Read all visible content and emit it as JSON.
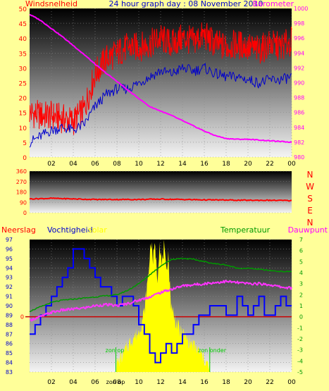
{
  "header": {
    "left_label": "Windsnelheid",
    "title": "24 hour graph day : 08 November 2010",
    "right_label": "Barometer"
  },
  "lower_header": {
    "rain_label": "Neerslag",
    "humidity_label": "Vochtigheid",
    "solar_label": "solar",
    "temperature_label": "Temperatuur",
    "dewpoint_label": "Dauwpunt"
  },
  "compass_letters": [
    "N",
    "W",
    "S",
    "E",
    "N"
  ],
  "sun_labels": {
    "sunrise_left": "zon op",
    "sunset_right": "zon onder",
    "axis_sunrise": "zon op"
  },
  "colors": {
    "wind_gust": "#ff0000",
    "wind_avg": "#0000cc",
    "barometer": "#ff00ff",
    "direction": "#ff0000",
    "humidity": "#0000ff",
    "temperature": "#009900",
    "dewpoint": "#ff33ff",
    "solar": "#ffff00",
    "rain_zero_line": "#ff0000",
    "zero_line_temp": "#cc0000"
  },
  "chart_data": [
    {
      "type": "line",
      "panel": "wind_and_pressure",
      "x_ticks": [
        "02",
        "04",
        "06",
        "08",
        "10",
        "12",
        "14",
        "16",
        "18",
        "20",
        "22",
        "00"
      ],
      "y_left_ticks": [
        "0",
        "5",
        "10",
        "15",
        "20",
        "25",
        "30",
        "35",
        "40",
        "45",
        "50"
      ],
      "ylim_left": [
        0,
        50
      ],
      "y_right_ticks": [
        "980",
        "982",
        "984",
        "986",
        "988",
        "990",
        "992",
        "994",
        "996",
        "998",
        "1000"
      ],
      "ylim_right": [
        980,
        1000
      ],
      "hours": [
        0,
        1,
        2,
        3,
        4,
        5,
        6,
        7,
        8,
        9,
        10,
        11,
        12,
        13,
        14,
        15,
        16,
        17,
        18,
        19,
        20,
        21,
        22,
        23,
        24
      ],
      "series": [
        {
          "name": "Windsnelheid",
          "axis": "left",
          "values": [
            15,
            14,
            14,
            13,
            12,
            16,
            28,
            33,
            35,
            37,
            37,
            38,
            40,
            38,
            40,
            39,
            41,
            38,
            37,
            38,
            37,
            36,
            38,
            37,
            39
          ]
        },
        {
          "name": "",
          "axis": "left",
          "values": [
            5,
            7,
            9,
            10,
            9,
            11,
            17,
            21,
            23,
            23,
            25,
            27,
            29,
            28,
            30,
            29,
            30,
            28,
            27,
            27,
            26,
            25,
            26,
            26,
            27
          ]
        },
        {
          "name": "Barometer",
          "axis": "right",
          "values": [
            999.2,
            998.4,
            997.3,
            996.2,
            995.0,
            993.8,
            992.5,
            991.3,
            990.2,
            989.0,
            987.9,
            986.8,
            986.2,
            985.6,
            984.9,
            984.2,
            983.5,
            982.9,
            982.5,
            982.4,
            982.4,
            982.3,
            982.2,
            982.1,
            982.0
          ]
        }
      ]
    },
    {
      "type": "line",
      "panel": "wind_direction",
      "y_ticks": [
        "0",
        "90",
        "180",
        "270",
        "360"
      ],
      "ylim": [
        0,
        360
      ],
      "hours": [
        0,
        2,
        4,
        6,
        8,
        10,
        12,
        14,
        16,
        18,
        20,
        22,
        24
      ],
      "series": [
        {
          "name": "",
          "values": [
            120,
            125,
            120,
            115,
            115,
            115,
            118,
            115,
            112,
            110,
            108,
            108,
            105
          ]
        }
      ]
    },
    {
      "type": "line",
      "panel": "humidity_temperature_solar",
      "x_ticks": [
        "02",
        "04",
        "06",
        "08",
        "10",
        "12",
        "14",
        "16",
        "18",
        "20",
        "22",
        "00"
      ],
      "y_left_ticks": [
        "83",
        "84",
        "85",
        "86",
        "87",
        "88",
        "89",
        "90",
        "91",
        "92",
        "93",
        "94",
        "95",
        "96",
        "97"
      ],
      "ylim_left": [
        83,
        97
      ],
      "y_right_ticks": [
        "-5",
        "-4",
        "-3",
        "-2",
        "-1",
        "0",
        "1",
        "2",
        "3",
        "4",
        "5",
        "6",
        "7"
      ],
      "ylim_right": [
        -5,
        7
      ],
      "rain_axis_value": "0",
      "series": [
        {
          "name": "Vochtigheid",
          "axis": "left",
          "hours": [
            0,
            0.5,
            1,
            1.5,
            2,
            2.5,
            3,
            3.5,
            4,
            4.5,
            5,
            5.5,
            6,
            6.5,
            7,
            7.5,
            8,
            8.5,
            9,
            9.5,
            10,
            10.5,
            11,
            11.5,
            12,
            12.5,
            13,
            13.5,
            14,
            14.5,
            15,
            15.5,
            16,
            16.5,
            17,
            17.5,
            18,
            18.5,
            19,
            19.5,
            20,
            20.5,
            21,
            21.5,
            22,
            22.5,
            23,
            23.5,
            24
          ],
          "values": [
            87,
            88,
            89,
            90,
            91,
            92,
            93,
            94,
            96,
            96,
            95,
            94,
            93,
            92,
            92,
            91,
            90,
            91,
            91,
            90,
            88,
            87,
            85,
            84,
            85,
            86,
            85,
            86,
            87,
            87,
            88,
            89,
            89,
            90,
            90,
            90,
            89,
            89,
            91,
            90,
            89,
            90,
            91,
            89,
            89,
            90,
            91,
            90,
            90
          ]
        },
        {
          "name": "Temperatuur",
          "axis": "right",
          "hours": [
            0,
            1,
            2,
            3,
            4,
            5,
            6,
            7,
            8,
            9,
            10,
            11,
            12,
            13,
            14,
            15,
            16,
            17,
            18,
            19,
            20,
            21,
            22,
            23,
            24
          ],
          "values": [
            0.5,
            0.9,
            1.3,
            1.5,
            1.6,
            1.7,
            1.8,
            1.9,
            2.0,
            2.4,
            3.0,
            3.8,
            4.6,
            5.2,
            5.3,
            5.2,
            5.0,
            4.8,
            4.7,
            4.4,
            4.4,
            4.3,
            4.2,
            4.1,
            4.1
          ]
        },
        {
          "name": "Dauwpunt",
          "axis": "right",
          "hours": [
            0,
            1,
            2,
            3,
            4,
            5,
            6,
            7,
            8,
            9,
            10,
            11,
            12,
            13,
            14,
            15,
            16,
            17,
            18,
            19,
            20,
            21,
            22,
            23,
            24
          ],
          "values": [
            -0.3,
            0.0,
            0.4,
            0.6,
            0.7,
            0.8,
            1.0,
            1.1,
            1.0,
            1.2,
            1.5,
            1.8,
            2.2,
            2.5,
            2.8,
            2.9,
            3.0,
            3.1,
            3.2,
            3.1,
            3.0,
            3.0,
            2.9,
            2.7,
            2.6
          ]
        },
        {
          "name": "solar",
          "axis": "none",
          "hours": [
            7.9,
            8.5,
            9,
            9.5,
            10,
            10.5,
            10.9,
            11.1,
            11.3,
            11.5,
            11.7,
            11.9,
            12.1,
            12.3,
            12.5,
            12.7,
            12.9,
            13.2,
            13.5,
            13.8,
            14.1,
            14.5,
            15,
            15.5,
            16,
            16.5
          ],
          "values": [
            0.05,
            0.12,
            0.2,
            0.26,
            0.3,
            0.45,
            0.75,
            1.0,
            0.85,
            0.95,
            0.7,
            0.98,
            0.8,
            0.95,
            0.75,
            0.9,
            0.55,
            0.42,
            0.36,
            0.3,
            0.28,
            0.24,
            0.2,
            0.15,
            0.1,
            0.02
          ]
        }
      ]
    }
  ]
}
